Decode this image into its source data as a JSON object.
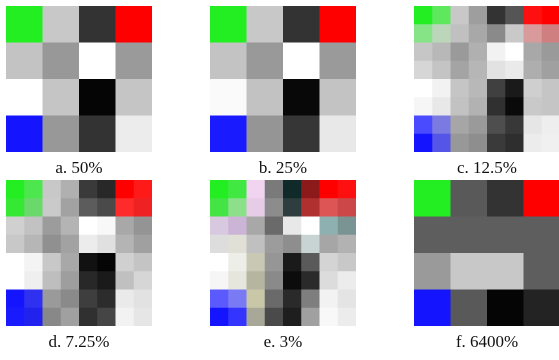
{
  "panels": [
    {
      "id": "a",
      "caption": "a. 50%",
      "cols": 4,
      "rows": 4,
      "cells": [
        "#22ee22",
        "#c8c8c8",
        "#333333",
        "#ff0000",
        "#c3c3c3",
        "#989898",
        "#ffffff",
        "#9a9a9a",
        "#ffffff",
        "#c5c5c5",
        "#050505",
        "#c5c5c5",
        "#1414ff",
        "#989898",
        "#333333",
        "#ececec"
      ]
    },
    {
      "id": "b",
      "caption": "b. 25%",
      "cols": 4,
      "rows": 4,
      "cells": [
        "#22ee22",
        "#c8c8c8",
        "#333333",
        "#ff0000",
        "#c3c3c3",
        "#999999",
        "#ffffff",
        "#9a9a9a",
        "#fafafa",
        "#c2c2c2",
        "#080808",
        "#c3c3c3",
        "#1a1aff",
        "#959595",
        "#363636",
        "#e8e8e8"
      ]
    },
    {
      "id": "c",
      "caption": "c. 12.5%",
      "cols": 8,
      "rows": 8,
      "cells": [
        "#22ee22",
        "#5ee85e",
        "#c8c8c8",
        "#9e9e9e",
        "#333333",
        "#555555",
        "#ff1010",
        "#ff0000",
        "#86e486",
        "#bcd6bc",
        "#c0c0c0",
        "#a8a8a8",
        "#8a8a8a",
        "#c9c9c9",
        "#d89a9a",
        "#cf7f7f",
        "#c6c6c6",
        "#b8b8b8",
        "#9a9a9a",
        "#b0b0b0",
        "#f2f2f2",
        "#ffffff",
        "#a8a8a8",
        "#9a9a9a",
        "#d6d6d6",
        "#c4c4c4",
        "#a4a4a4",
        "#b6b6b6",
        "#e2e2e2",
        "#eaeaea",
        "#aeaeae",
        "#a0a0a0",
        "#ffffff",
        "#f2f2f2",
        "#c5c5c5",
        "#b8b8b8",
        "#404040",
        "#1a1a1a",
        "#cfcfcf",
        "#c5c5c5",
        "#f6f6f6",
        "#e8e8e8",
        "#c2c2c2",
        "#b2b2b2",
        "#303030",
        "#0a0a0a",
        "#c9c9c9",
        "#c5c5c5",
        "#4a4aff",
        "#7a7ae0",
        "#a6a6a6",
        "#9a9a9a",
        "#4e4e4e",
        "#383838",
        "#e6e6e6",
        "#eeeeee",
        "#1414ff",
        "#5555e8",
        "#989898",
        "#8e8e8e",
        "#3a3a3a",
        "#2e2e2e",
        "#ececec",
        "#f0f0f0"
      ]
    },
    {
      "id": "d",
      "caption": "d. 7.25%",
      "cols": 8,
      "rows": 8,
      "cells": [
        "#22ee22",
        "#4ee64e",
        "#c8c8c8",
        "#b0b0b0",
        "#3a3a3a",
        "#282828",
        "#ff0000",
        "#ff1a1a",
        "#34e834",
        "#6ad86a",
        "#cacaca",
        "#a2a2a2",
        "#5c5c5c",
        "#4a4a4a",
        "#ff2a2a",
        "#ee2222",
        "#d0d0d0",
        "#c2c2c2",
        "#9c9c9c",
        "#b4b4b4",
        "#ffffff",
        "#f8f8f8",
        "#a8a8a8",
        "#949494",
        "#c8c8c8",
        "#b6b6b6",
        "#909090",
        "#a2a2a2",
        "#ececec",
        "#e0e0e0",
        "#b4b4b4",
        "#a0a0a0",
        "#ffffff",
        "#f4f4f4",
        "#c8c8c8",
        "#a8a8a8",
        "#111111",
        "#050505",
        "#d0d0d0",
        "#c4c4c4",
        "#ffffff",
        "#efefef",
        "#bebebe",
        "#9e9e9e",
        "#282828",
        "#1a1a1a",
        "#c0c0c0",
        "#d6d6d6",
        "#1414ff",
        "#3030f0",
        "#9a9a9a",
        "#8a8a8a",
        "#3e3e3e",
        "#2c2c2c",
        "#eaeaea",
        "#e2e2e2",
        "#1a1aff",
        "#2222ee",
        "#888888",
        "#a0a0a0",
        "#303030",
        "#454545",
        "#f2f2f2",
        "#e6e6e6"
      ]
    },
    {
      "id": "e",
      "caption": "e. 3%",
      "cols": 8,
      "rows": 8,
      "cells": [
        "#22ee22",
        "#42e842",
        "#f0d4f0",
        "#7a7a7a",
        "#102a2a",
        "#8c1a1a",
        "#ff0000",
        "#ff1010",
        "#44e444",
        "#8ce08c",
        "#e6cce6",
        "#8c8c8c",
        "#2e3e3e",
        "#b03030",
        "#dd5555",
        "#cc4848",
        "#d8c8e0",
        "#ccb4d6",
        "#a8a8a8",
        "#6a6a6a",
        "#e8e8e8",
        "#ffffff",
        "#8fb0b0",
        "#7a9494",
        "#dddddd",
        "#e0e0d6",
        "#c0c0c0",
        "#9c9c9c",
        "#8e8e8e",
        "#c8d4d4",
        "#a6a6a6",
        "#b2b2b2",
        "#ffffff",
        "#eeeee8",
        "#c8c8b4",
        "#969696",
        "#1a1a1a",
        "#5a5a5a",
        "#d4d4d4",
        "#c8c8c8",
        "#f6f6f6",
        "#e6e6dc",
        "#b6b6a0",
        "#8a8a8a",
        "#0c0c0c",
        "#2a2a2a",
        "#dcdcdc",
        "#ececec",
        "#5a5aff",
        "#7a7af4",
        "#c8c8a8",
        "#6a6a6a",
        "#2a2a2a",
        "#7e7e7e",
        "#f2f2f2",
        "#e4e4e4",
        "#1414ff",
        "#3434ff",
        "#a8a898",
        "#4a4a4a",
        "#1e1e1e",
        "#a0a0a0",
        "#f8f8f8",
        "#ececec"
      ]
    },
    {
      "id": "f",
      "caption": "f. 6400%",
      "cols": 4,
      "rows": 4,
      "cells": [
        "#22ee22",
        "#595959",
        "#333333",
        "#ff0000",
        "#5e5e5e",
        "#5e5e5e",
        "#5e5e5e",
        "#5e5e5e",
        "#9a9a9a",
        "#c8c8c8",
        "#c8c8c8",
        "#5e5e5e",
        "#1414ff",
        "#595959",
        "#050505",
        "#232323"
      ]
    }
  ]
}
